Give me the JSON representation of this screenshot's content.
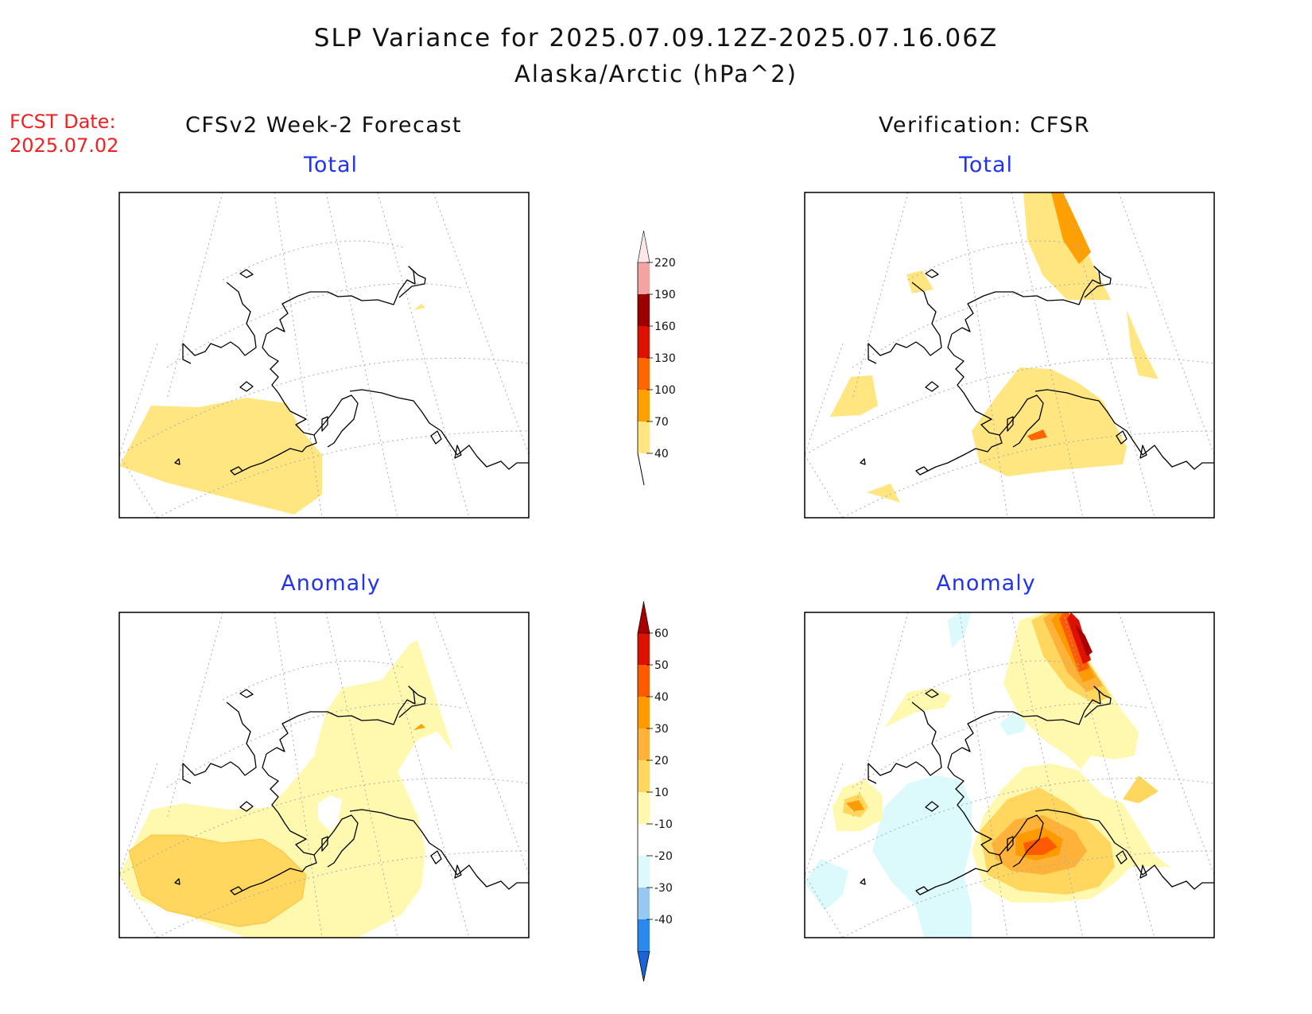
{
  "title": "SLP Variance for 2025.07.09.12Z-2025.07.16.06Z",
  "subtitle": "Alaska/Arctic (hPa^2)",
  "fcst_date": {
    "line1": "FCST Date:",
    "line2": "2025.07.02"
  },
  "columns": {
    "left": "CFSv2 Week-2 Forecast",
    "right": "Verification: CFSR"
  },
  "panels": {
    "tl": {
      "title": "Total"
    },
    "tr": {
      "title": "Total"
    },
    "bl": {
      "title": "Anomaly"
    },
    "br": {
      "title": "Anomaly"
    }
  },
  "colorbar_total": {
    "labels": [
      "40",
      "70",
      "100",
      "130",
      "160",
      "190",
      "220"
    ],
    "colors": [
      "#ffe680",
      "#ffa000",
      "#ff6600",
      "#dd1100",
      "#9a0000",
      "#f4a3a3",
      "#fde8e8"
    ]
  },
  "colorbar_anomaly": {
    "labels": [
      "-40",
      "-30",
      "-20",
      "-10",
      "10",
      "20",
      "30",
      "40",
      "50",
      "60"
    ],
    "colors": [
      "#1a64d8",
      "#2a88ee",
      "#96c8f2",
      "#dcfafc",
      "#ffffff",
      "#fff9b0",
      "#ffd75e",
      "#ffb23a",
      "#ff9a00",
      "#ff5a00",
      "#dd1100",
      "#a80000"
    ]
  },
  "colors": {
    "title_red": "#ee2222",
    "panel_title_blue": "#2233ee"
  }
}
